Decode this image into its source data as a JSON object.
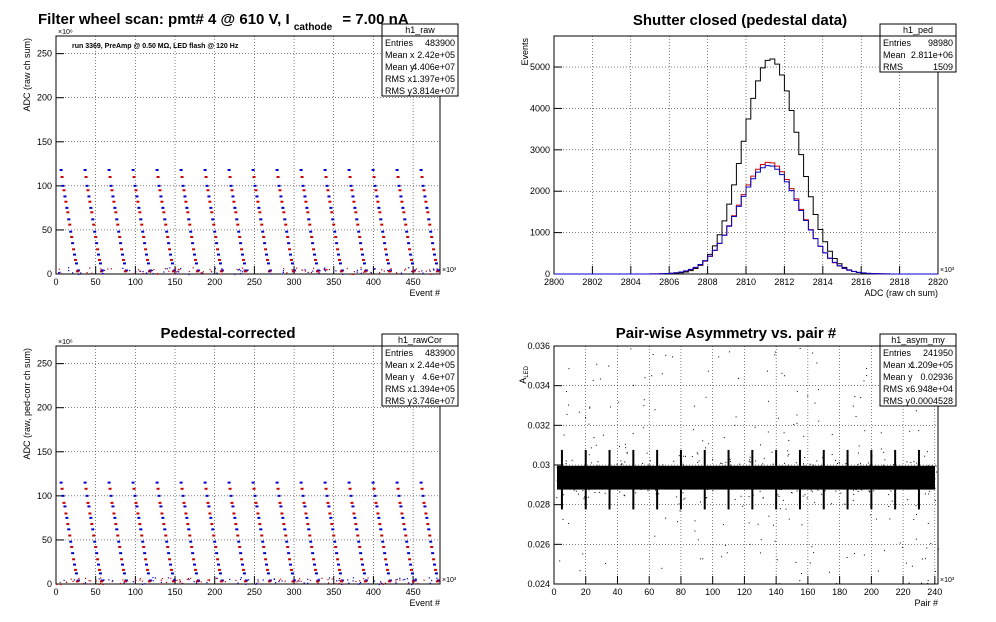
{
  "page_title": {
    "prefix": "Filter wheel scan: pmt#   4 @   610 V, I",
    "subscript": "cathode",
    "suffix": "= 7.00 nA"
  },
  "panels": [
    {
      "title": "",
      "stats": {
        "name": "h1_raw",
        "rows": [
          {
            "label": "Entries",
            "value": "483900"
          },
          {
            "label": "Mean x",
            "value": "2.42e+05"
          },
          {
            "label": "Mean y",
            "value": "4.406e+07"
          },
          {
            "label": "RMS x",
            "value": "1.397e+05"
          },
          {
            "label": "RMS y",
            "value": "3.814e+07"
          }
        ]
      },
      "note": "run 3369, PreAmp @ 0.50 MΩ, LED flash @  120 Hz"
    },
    {
      "title": "Shutter closed (pedestal data)",
      "stats": {
        "name": "h1_ped",
        "rows": [
          {
            "label": "Entries",
            "value": "98980"
          },
          {
            "label": "Mean",
            "value": "2.811e+06"
          },
          {
            "label": "RMS",
            "value": "1509"
          }
        ]
      }
    },
    {
      "title": "Pedestal-corrected",
      "stats": {
        "name": "h1_rawCor",
        "rows": [
          {
            "label": "Entries",
            "value": "483900"
          },
          {
            "label": "Mean x",
            "value": "2.44e+05"
          },
          {
            "label": "Mean y",
            "value": "4.6e+07"
          },
          {
            "label": "RMS x",
            "value": "1.394e+05"
          },
          {
            "label": "RMS y",
            "value": "3.746e+07"
          }
        ]
      }
    },
    {
      "title": "Pair-wise Asymmetry vs. pair #",
      "stats": {
        "name": "h1_asym_my",
        "rows": [
          {
            "label": "Entries",
            "value": "241950"
          },
          {
            "label": "Mean x",
            "value": "1.209e+05"
          },
          {
            "label": "Mean y",
            "value": "0.02936"
          },
          {
            "label": "RMS x",
            "value": "6.948e+04"
          },
          {
            "label": "RMS y",
            "value": "0.0004528"
          }
        ]
      }
    }
  ],
  "chart_data": [
    {
      "type": "scatter",
      "title": "",
      "xlabel": "Event #",
      "ylabel": "ADC (raw ch sum)",
      "x_multiplier": "×10³",
      "y_multiplier": "×10⁶",
      "xlim": [
        0,
        483.9
      ],
      "ylim": [
        0,
        270
      ],
      "xticks": [
        0,
        50,
        100,
        150,
        200,
        250,
        300,
        350,
        400,
        450
      ],
      "yticks": [
        0,
        50,
        100,
        150,
        200,
        250
      ],
      "grid": true,
      "series": [
        {
          "color": "#0000cc",
          "levels": [
            118,
            100,
            88,
            75,
            62,
            48,
            35,
            22,
            12,
            4
          ]
        },
        {
          "color": "#cc0000",
          "levels": [
            110,
            95,
            82,
            70,
            56,
            42,
            28,
            16,
            3
          ]
        }
      ]
    },
    {
      "type": "histogram",
      "title": "Shutter closed (pedestal data)",
      "xlabel": "ADC (raw ch sum)",
      "ylabel": "Events",
      "x_multiplier": "×10³",
      "xlim": [
        2800,
        2820
      ],
      "ylim": [
        0,
        5750
      ],
      "xticks": [
        2800,
        2802,
        2804,
        2806,
        2808,
        2810,
        2812,
        2814,
        2816,
        2818,
        2820
      ],
      "yticks": [
        0,
        1000,
        2000,
        3000,
        4000,
        5000
      ],
      "grid": true,
      "series": [
        {
          "color": "#000000",
          "peak": 5200,
          "center": 2811.3,
          "sigma": 1.45
        },
        {
          "color": "#cc0000",
          "peak": 2700,
          "center": 2811.2,
          "sigma": 1.6
        },
        {
          "color": "#0000cc",
          "peak": 2620,
          "center": 2811.2,
          "sigma": 1.62
        }
      ]
    },
    {
      "type": "scatter",
      "title": "Pedestal-corrected",
      "xlabel": "Event #",
      "ylabel": "ADC (raw, ped-corr ch sum)",
      "x_multiplier": "×10³",
      "y_multiplier": "×10⁶",
      "xlim": [
        0,
        483.9
      ],
      "ylim": [
        0,
        270
      ],
      "xticks": [
        0,
        50,
        100,
        150,
        200,
        250,
        300,
        350,
        400,
        450
      ],
      "yticks": [
        0,
        50,
        100,
        150,
        200,
        250
      ],
      "grid": true,
      "series": [
        {
          "color": "#0000cc",
          "levels": [
            115,
            100,
            88,
            75,
            62,
            48,
            35,
            22,
            12,
            4
          ]
        },
        {
          "color": "#cc0000",
          "levels": [
            108,
            92,
            80,
            68,
            55,
            42,
            28,
            16,
            3
          ]
        }
      ]
    },
    {
      "type": "scatter",
      "title": "Pair-wise Asymmetry vs. pair #",
      "xlabel": "Pair #",
      "ylabel": "A_LED",
      "x_multiplier": "×10³",
      "xlim": [
        0,
        242
      ],
      "ylim": [
        0.024,
        0.036
      ],
      "xticks": [
        0,
        20,
        40,
        60,
        80,
        100,
        120,
        140,
        160,
        180,
        200,
        220,
        240
      ],
      "yticks": [
        0.024,
        0.026,
        0.028,
        0.03,
        0.032,
        0.034,
        0.036
      ],
      "grid": true,
      "band": {
        "center": 0.02936,
        "halfwidth": 0.0006
      },
      "spike_positions": [
        5,
        20,
        35,
        50,
        65,
        80,
        95,
        110,
        125,
        140,
        155,
        170,
        185,
        200,
        215,
        230
      ]
    }
  ]
}
